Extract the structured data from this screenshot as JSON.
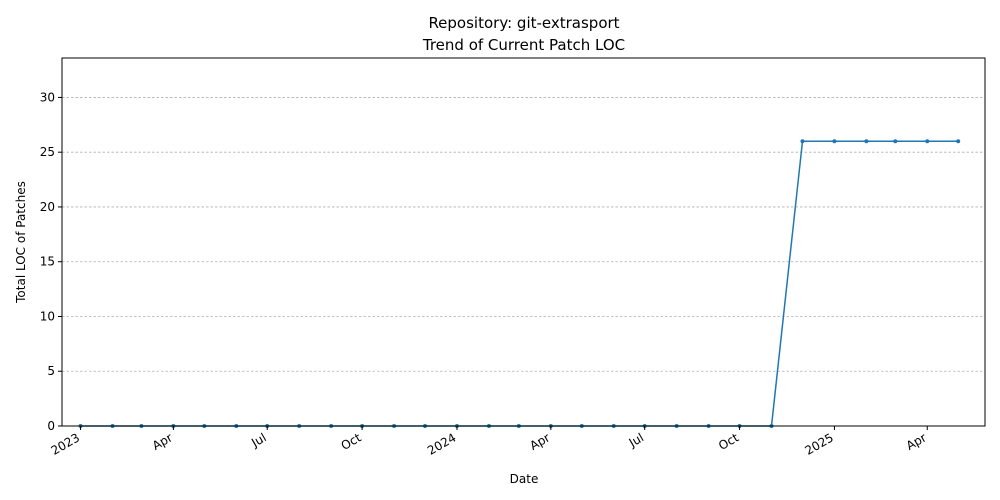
{
  "chart_data": {
    "type": "line",
    "title": "Repository: git-extrasport",
    "subtitle": "Trend of Current Patch LOC",
    "xlabel": "Date",
    "ylabel": "Total LOC of Patches",
    "ylim": [
      0,
      33.6
    ],
    "yticks": [
      0,
      5,
      10,
      15,
      20,
      25,
      30
    ],
    "xlim": [
      "2022-12-14",
      "2025-05-27"
    ],
    "xticks": [
      {
        "date": "2023-01-01",
        "label": "2023"
      },
      {
        "date": "2023-04-01",
        "label": "Apr"
      },
      {
        "date": "2023-07-01",
        "label": "Jul"
      },
      {
        "date": "2023-10-01",
        "label": "Oct"
      },
      {
        "date": "2024-01-01",
        "label": "2024"
      },
      {
        "date": "2024-04-01",
        "label": "Apr"
      },
      {
        "date": "2024-07-01",
        "label": "Jul"
      },
      {
        "date": "2024-10-01",
        "label": "Oct"
      },
      {
        "date": "2025-01-01",
        "label": "2025"
      },
      {
        "date": "2025-04-01",
        "label": "Apr"
      }
    ],
    "grid": "y-dashed",
    "series": [
      {
        "color": "#1f77b4",
        "x": [
          "2023-01-01",
          "2023-02-01",
          "2023-03-01",
          "2023-04-01",
          "2023-05-01",
          "2023-06-01",
          "2023-07-01",
          "2023-08-01",
          "2023-09-01",
          "2023-10-01",
          "2023-11-01",
          "2023-12-01",
          "2024-01-01",
          "2024-02-01",
          "2024-03-01",
          "2024-04-01",
          "2024-05-01",
          "2024-06-01",
          "2024-07-01",
          "2024-08-01",
          "2024-09-01",
          "2024-10-01",
          "2024-11-01",
          "2024-12-01",
          "2025-01-01",
          "2025-02-01",
          "2025-03-01",
          "2025-04-01",
          "2025-05-01"
        ],
        "y": [
          0,
          0,
          0,
          0,
          0,
          0,
          0,
          0,
          0,
          0,
          0,
          0,
          0,
          0,
          0,
          0,
          0,
          0,
          0,
          0,
          0,
          0,
          0,
          26,
          26,
          26,
          26,
          26,
          26
        ]
      }
    ]
  }
}
